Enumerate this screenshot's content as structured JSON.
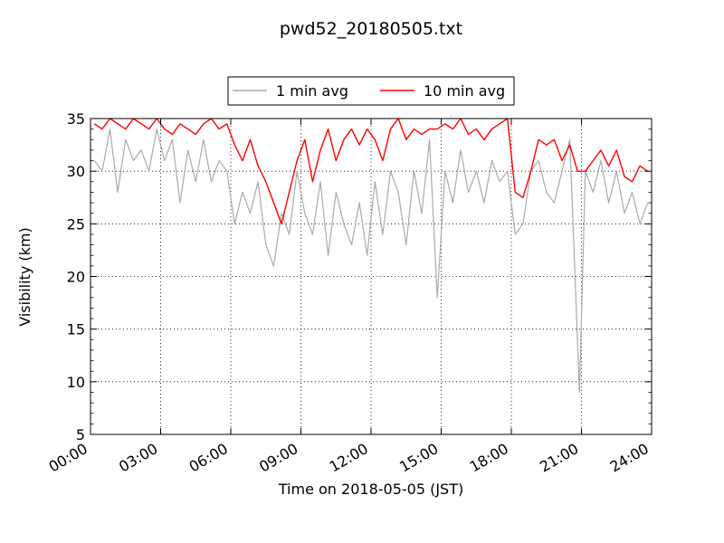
{
  "chart_data": {
    "type": "line",
    "title": "pwd52_20180505.txt",
    "xlabel": "Time on 2018-05-05 (JST)",
    "ylabel": "Visibility (km)",
    "xlim": [
      "00:00",
      "24:00"
    ],
    "ylim": [
      5,
      35
    ],
    "x_ticks": [
      "00:00",
      "03:00",
      "06:00",
      "09:00",
      "12:00",
      "15:00",
      "18:00",
      "21:00",
      "24:00"
    ],
    "y_ticks": [
      5,
      10,
      15,
      20,
      25,
      30,
      35
    ],
    "grid": true,
    "legend_position": "top-center",
    "series": [
      {
        "name": "1 min avg",
        "color": "#aaaaaa",
        "x": [
          "00:10",
          "00:30",
          "00:50",
          "01:10",
          "01:30",
          "01:50",
          "02:10",
          "02:30",
          "02:50",
          "03:10",
          "03:30",
          "03:50",
          "04:10",
          "04:30",
          "04:50",
          "05:10",
          "05:30",
          "05:50",
          "06:10",
          "06:30",
          "06:50",
          "07:10",
          "07:30",
          "07:50",
          "08:10",
          "08:30",
          "08:50",
          "09:10",
          "09:30",
          "09:50",
          "10:10",
          "10:30",
          "10:50",
          "11:10",
          "11:30",
          "11:50",
          "12:10",
          "12:30",
          "12:50",
          "13:10",
          "13:30",
          "13:50",
          "14:10",
          "14:30",
          "14:50",
          "14:55",
          "15:10",
          "15:30",
          "15:50",
          "16:10",
          "16:30",
          "16:50",
          "17:10",
          "17:30",
          "17:50",
          "18:10",
          "18:30",
          "18:50",
          "19:10",
          "19:30",
          "19:50",
          "20:10",
          "20:30",
          "20:55",
          "21:10",
          "21:30",
          "21:50",
          "22:10",
          "22:30",
          "22:50",
          "23:10",
          "23:30",
          "23:50"
        ],
        "values": [
          31,
          30,
          34,
          28,
          33,
          31,
          32,
          30,
          34,
          31,
          33,
          27,
          32,
          29,
          33,
          29,
          31,
          30,
          25,
          28,
          26,
          29,
          23,
          21,
          26,
          24,
          30,
          26,
          24,
          29,
          22,
          28,
          25,
          23,
          27,
          22,
          29,
          24,
          30,
          28,
          23,
          30,
          26,
          33,
          18,
          21,
          30,
          27,
          32,
          28,
          30,
          27,
          31,
          29,
          30,
          24,
          25,
          30,
          31,
          28,
          27,
          30,
          33,
          9,
          30,
          28,
          31,
          27,
          30,
          26,
          28,
          25,
          27
        ]
      },
      {
        "name": "10 min avg",
        "color": "#ff0000",
        "x": [
          "00:10",
          "00:30",
          "00:50",
          "01:10",
          "01:30",
          "01:50",
          "02:10",
          "02:30",
          "02:50",
          "03:10",
          "03:30",
          "03:50",
          "04:10",
          "04:30",
          "04:50",
          "05:10",
          "05:30",
          "05:50",
          "06:10",
          "06:30",
          "06:50",
          "07:10",
          "07:30",
          "07:50",
          "08:10",
          "08:30",
          "08:50",
          "09:10",
          "09:30",
          "09:50",
          "10:10",
          "10:30",
          "10:50",
          "11:10",
          "11:30",
          "11:50",
          "12:10",
          "12:30",
          "12:50",
          "13:10",
          "13:30",
          "13:50",
          "14:10",
          "14:30",
          "14:50",
          "15:10",
          "15:30",
          "15:50",
          "16:10",
          "16:30",
          "16:50",
          "17:10",
          "17:30",
          "17:50",
          "18:10",
          "18:30",
          "18:50",
          "19:10",
          "19:30",
          "19:50",
          "20:10",
          "20:30",
          "20:50",
          "21:10",
          "21:30",
          "21:50",
          "22:10",
          "22:30",
          "22:50",
          "23:10",
          "23:30",
          "23:50"
        ],
        "values": [
          34.5,
          34,
          35,
          34.5,
          34,
          35,
          34.5,
          34,
          35,
          34,
          33.5,
          34.5,
          34,
          33.5,
          34.5,
          35,
          34,
          34.5,
          32.5,
          31,
          33,
          30.5,
          29,
          27,
          25,
          28,
          31,
          33,
          29,
          32,
          34,
          31,
          33,
          34,
          32.5,
          34,
          33,
          31,
          34,
          35,
          33,
          34,
          33.5,
          34,
          34,
          34.5,
          34,
          35,
          33.5,
          34,
          33,
          34,
          34.5,
          35,
          28,
          27.5,
          30,
          33,
          32.5,
          33,
          31,
          32.5,
          30,
          30,
          31,
          32,
          30.5,
          32,
          29.5,
          29,
          30.5,
          30
        ]
      }
    ]
  }
}
